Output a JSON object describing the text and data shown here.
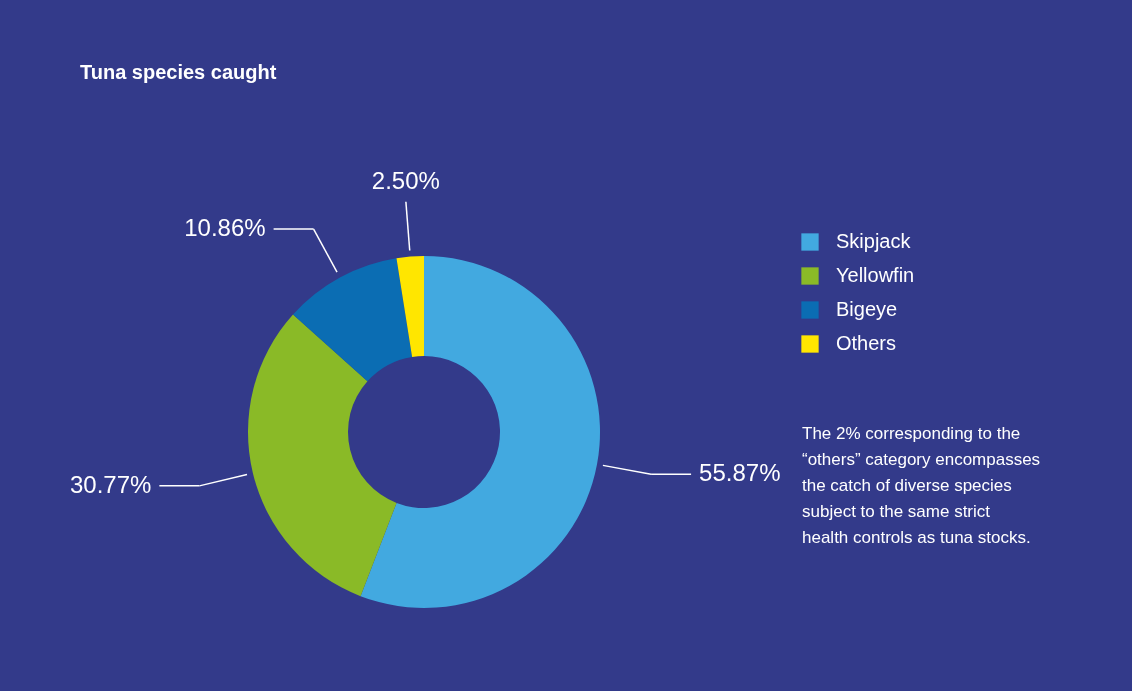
{
  "chart_data": {
    "type": "donut",
    "title": "Tuna species caught",
    "categories": [
      "Skipjack",
      "Yellowfin",
      "Bigeye",
      "Others"
    ],
    "values": [
      55.87,
      30.77,
      10.86,
      2.5
    ],
    "value_labels": [
      "55.87%",
      "30.77%",
      "10.86%",
      "2.50%"
    ],
    "colors": [
      "#42a9e0",
      "#8aba27",
      "#0b6db3",
      "#ffe600"
    ],
    "legend": "right",
    "annotations": [
      "The 2% corresponding to the “others” category encompasses the catch of diverse species subject to the same strict health controls as tuna stocks."
    ]
  }
}
